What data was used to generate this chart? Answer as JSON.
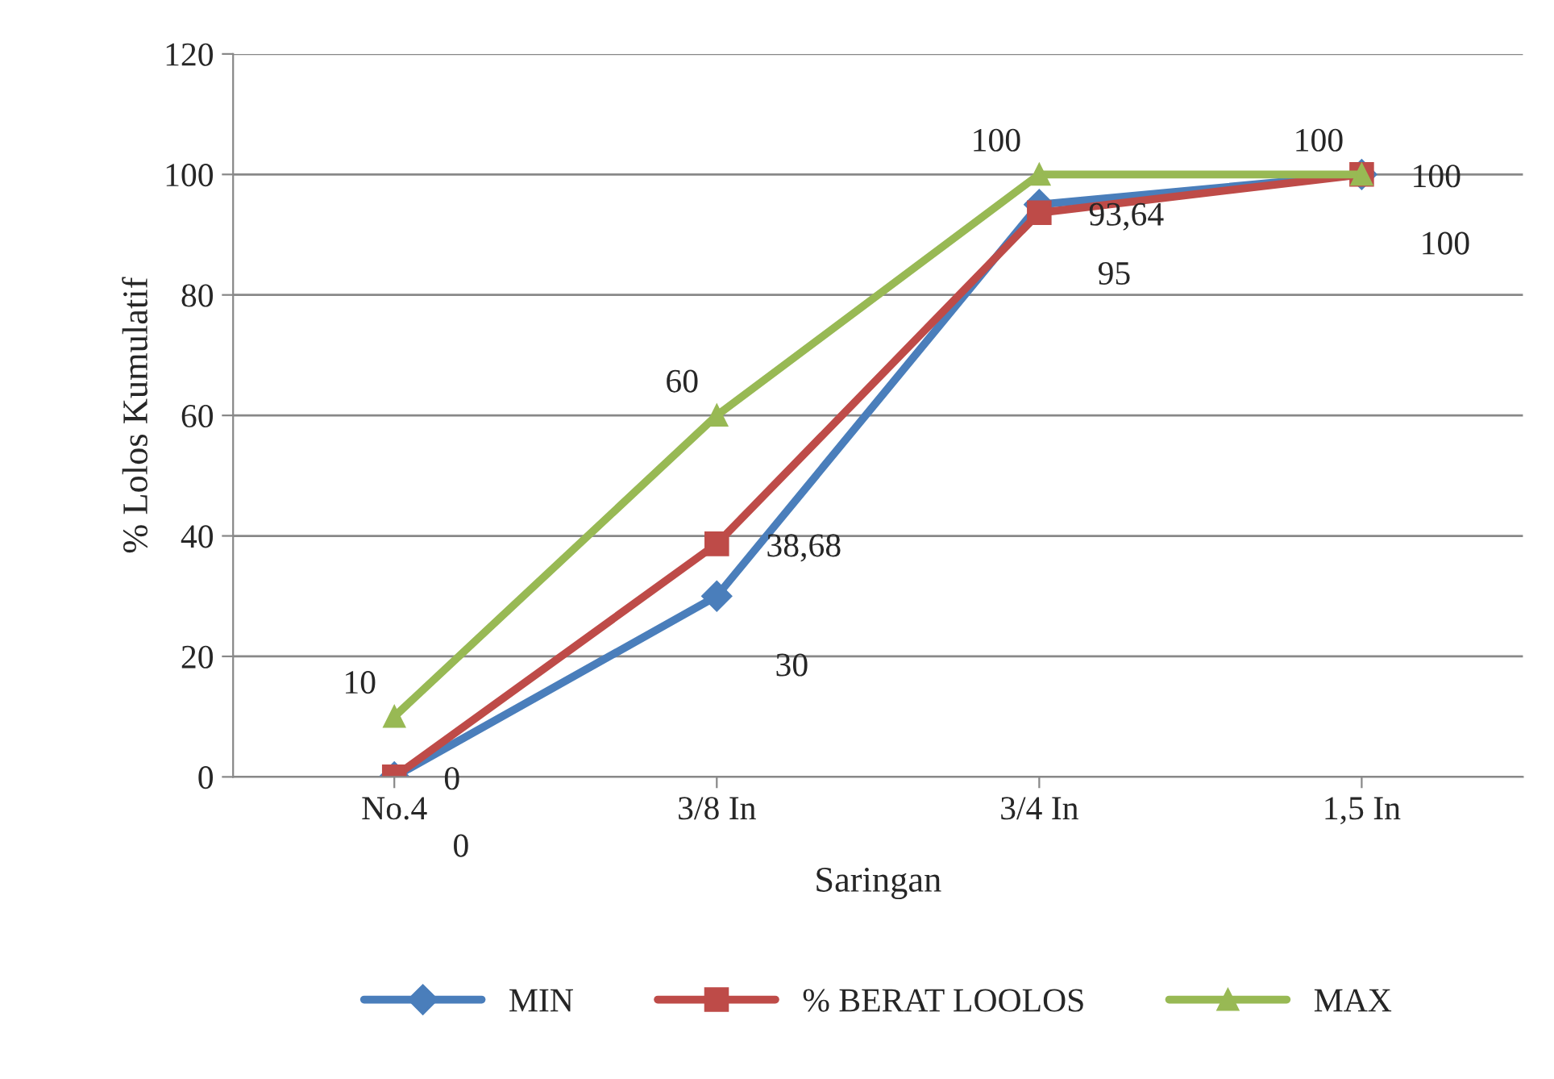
{
  "chart_data": {
    "type": "line",
    "xlabel": "Saringan",
    "ylabel": "% Lolos Kumulatif",
    "categories": [
      "No.4",
      "3/8 In",
      "3/4 In",
      "1,5 In"
    ],
    "series": [
      {
        "name": "MIN",
        "color": "#4a7ebb",
        "marker": "diamond",
        "values": [
          0,
          30,
          95,
          100
        ],
        "value_labels": [
          "0",
          "30",
          "95",
          "100"
        ]
      },
      {
        "name": "% BERAT LOOLOS",
        "color": "#be4b48",
        "marker": "square",
        "values": [
          0,
          38.68,
          93.64,
          100
        ],
        "value_labels": [
          "0",
          "38,68",
          "93,64",
          "100"
        ]
      },
      {
        "name": "MAX",
        "color": "#98b954",
        "marker": "triangle",
        "values": [
          10,
          60,
          100,
          100
        ],
        "value_labels": [
          "10",
          "60",
          "100",
          "100"
        ]
      }
    ],
    "ylim": [
      0,
      120
    ],
    "yticks": [
      0,
      20,
      40,
      60,
      80,
      100,
      120
    ],
    "grid": "y",
    "legend": "bottom",
    "line_style": "solid"
  }
}
